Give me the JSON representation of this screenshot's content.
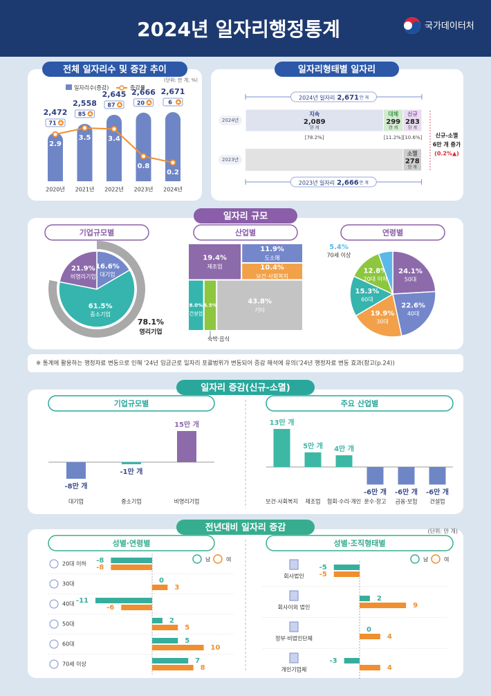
{
  "header": {
    "title": "2024년 일자리행정통계",
    "org": "국가데이터처"
  },
  "sections": [
    "일자리 규모",
    "일자리 증감(신규-소멸)",
    "전년대비 일자리 증감"
  ],
  "note": "※ 통계에 활용하는 행정자료 변동으로 인해 '24년 임금근로 일자리 포괄범위가 변동되어 증감 해석에 유의('24년 행정자료 변동 효과(참고(p.24))",
  "unit": "(단위: 만 개)",
  "chart_data": [
    {
      "type": "bar_line",
      "title": "전체 일자리수 및 증감 추이",
      "unit": "(단위: 만 개, %)",
      "categories": [
        "2020년",
        "2021년",
        "2022년",
        "2023년",
        "2024년"
      ],
      "series": [
        {
          "name": "일자리수(증감)",
          "color": "#6f86c6",
          "values": [
            2472,
            2558,
            2645,
            2666,
            2671
          ],
          "value_labels": [
            "2,472",
            "2,558",
            "2,645",
            "2,666",
            "2,671"
          ]
        },
        {
          "name": "증감률",
          "color": "#ef8f2f",
          "values": [
            2.9,
            3.5,
            3.4,
            0.8,
            0.2
          ],
          "axis": "y2"
        }
      ],
      "changes": [
        71,
        85,
        87,
        20,
        6
      ]
    },
    {
      "type": "stacked_bar",
      "title": "일자리형태별 일자리",
      "categories": [
        "2024년",
        "2023년"
      ],
      "unit": "만 개",
      "totals": {
        "labels": [
          "2024년 일자리",
          "2023년 일자리"
        ],
        "values": [
          2671,
          2666
        ],
        "value_labels": [
          "2,671",
          "2,666"
        ],
        "color": "#e2e2e2"
      },
      "series": [
        {
          "name": "지속",
          "color": "#dfe3f0",
          "values": [
            2089,
            null
          ],
          "value_labels": [
            "2,089",
            null
          ],
          "share_labels": [
            "[78.2%]",
            null
          ]
        },
        {
          "name": "대체",
          "color": "#d3ead0",
          "values": [
            299,
            null
          ],
          "value_labels": [
            "299",
            null
          ],
          "share_labels": [
            "[11.2%]",
            null
          ]
        },
        {
          "name": "신규",
          "color": "#eadcf0",
          "values": [
            283,
            null
          ],
          "value_labels": [
            "283",
            null
          ],
          "share_labels": [
            "[10.6%]",
            null
          ]
        },
        {
          "name": "소멸",
          "color": "#cdcdcd",
          "values": [
            null,
            278
          ],
          "value_labels": [
            null,
            "278"
          ]
        }
      ],
      "annotation": [
        "신규-소멸",
        "6만 개 증가",
        "(0.2%▲)"
      ]
    },
    {
      "type": "donut",
      "title": "기업규모별",
      "categories": [
        "대기업",
        "중소기업",
        "비영리기업"
      ],
      "values": [
        16.6,
        61.5,
        21.9
      ],
      "value_labels": [
        "16.6%",
        "61.5%",
        "21.9%"
      ],
      "colors": [
        "#7487cb",
        "#35b5ae",
        "#8d6aaa"
      ],
      "outer": {
        "name": "영리기업",
        "value": 78.1,
        "value_label": "78.1%",
        "color": "#a9a9a9"
      }
    },
    {
      "type": "treemap",
      "title": "산업별",
      "categories": [
        "제조업",
        "도소매",
        "보건·사회복지",
        "건설업",
        "숙박·음식",
        "기타"
      ],
      "values": [
        19.4,
        11.9,
        10.4,
        8.0,
        6.5,
        43.8
      ],
      "value_labels": [
        "19.4%",
        "11.9%",
        "10.4%",
        "8.0%",
        "6.5%",
        "43.8%"
      ],
      "colors": [
        "#8d6aaa",
        "#7487cb",
        "#f2a049",
        "#35b5ae",
        "#8dc63f",
        "#c4c4c4"
      ]
    },
    {
      "type": "pie",
      "title": "연령별",
      "categories": [
        "50대",
        "40대",
        "30대",
        "60대",
        "20대 이하",
        "70세 이상"
      ],
      "values": [
        24.1,
        22.6,
        19.9,
        15.3,
        12.8,
        5.4
      ],
      "value_labels": [
        "24.1%",
        "22.6%",
        "19.9%",
        "15.3%",
        "12.8%",
        "5.4%"
      ],
      "colors": [
        "#8d6aaa",
        "#7487cb",
        "#f2a049",
        "#35b5ae",
        "#8dc63f",
        "#5bb8e8"
      ]
    },
    {
      "type": "bar",
      "title": "기업규모별",
      "categories": [
        "대기업",
        "중소기업",
        "비영리기업"
      ],
      "values": [
        -8,
        -1,
        15
      ],
      "value_labels": [
        "-8만 개",
        "-1만 개",
        "15만 개"
      ],
      "colors": [
        "#6f86c6",
        "#35b5ae",
        "#8d6aaa"
      ]
    },
    {
      "type": "bar",
      "title": "주요 산업별",
      "categories": [
        "보건·사회복지",
        "제조업",
        "협회·수리·개인",
        "운수·창고",
        "금융·보험",
        "건설업"
      ],
      "values": [
        13,
        5,
        4,
        -6,
        -6,
        -6
      ],
      "value_labels": [
        "13만 개",
        "5만 개",
        "4만 개",
        "-6만 개",
        "-6만 개",
        "-6만 개"
      ],
      "colors": [
        "#3db8a5",
        "#3db8a5",
        "#3db8a5",
        "#6f86c6",
        "#6f86c6",
        "#6f86c6"
      ]
    },
    {
      "type": "diverging_bar",
      "title": "성별·연령별",
      "categories": [
        "20대 이하",
        "30대",
        "40대",
        "50대",
        "60대",
        "70세 이상"
      ],
      "series": [
        {
          "name": "남",
          "color": "#37ae9c",
          "values": [
            -8,
            0,
            -11,
            2,
            5,
            7
          ]
        },
        {
          "name": "여",
          "color": "#ef8f2f",
          "values": [
            -8,
            3,
            -6,
            5,
            10,
            8
          ]
        }
      ]
    },
    {
      "type": "diverging_bar",
      "title": "성별·조직형태별",
      "categories": [
        "회사법인",
        "회사이외 법인",
        "정부·비법인단체",
        "개인기업체"
      ],
      "series": [
        {
          "name": "남",
          "color": "#37ae9c",
          "values": [
            -5,
            2,
            0,
            -3
          ]
        },
        {
          "name": "여",
          "color": "#ef8f2f",
          "values": [
            -5,
            9,
            4,
            4
          ]
        }
      ]
    }
  ]
}
